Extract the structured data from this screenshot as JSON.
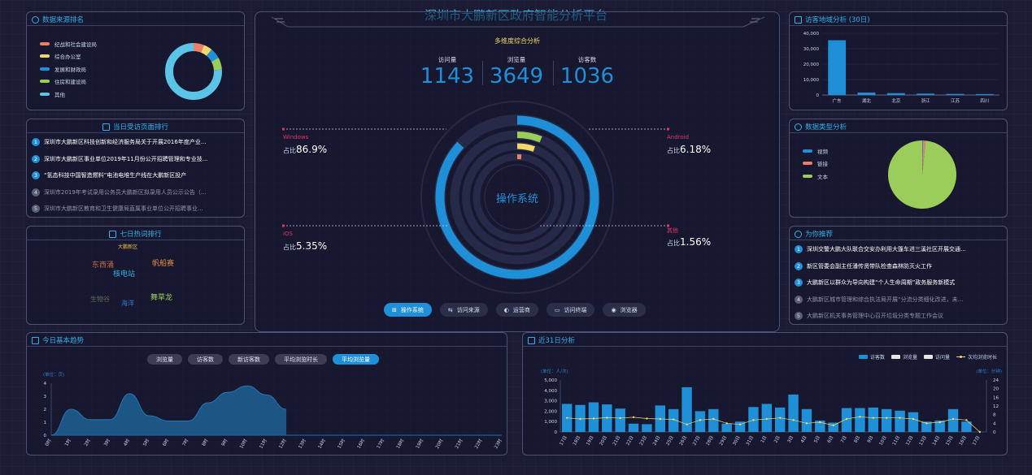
{
  "page_title": "深圳市大鹏新区政府智能分析平台",
  "sources": {
    "title": "数据来源排名",
    "items": [
      {
        "label": "纪战和社会建设局",
        "color": "#e8806a",
        "value": 6
      },
      {
        "label": "综合办公室",
        "color": "#f2d86b",
        "value": 5
      },
      {
        "label": "发展和财政局",
        "color": "#1f8fd8",
        "value": 6
      },
      {
        "label": "住房和建设局",
        "color": "#9acd5a",
        "value": 7
      },
      {
        "label": "其他",
        "color": "#5bc4e6",
        "value": 76
      }
    ]
  },
  "today_pages": {
    "title": "当日受访页面排行",
    "items": [
      {
        "num": "1",
        "text": "深圳市大鹏新区科技创新和经济服务局关于开展2016年度产业..."
      },
      {
        "num": "2",
        "text": "深圳市大鹏新区事业单位2019年11月份公开招聘管理和专业技..."
      },
      {
        "num": "3",
        "text": "“氢态科技中国智造燃料”电池电堆生产线在大鹏新区投产"
      },
      {
        "num": "4",
        "text": "深圳市2019年考试录用公务员大鹏新区拟录用人员公示公告（..."
      },
      {
        "num": "5",
        "text": "深圳市大鹏新区教育和卫生健康局直属事业单位公开招聘事业..."
      }
    ]
  },
  "hot_words": {
    "title": "七日热词排行",
    "words": [
      {
        "text": "大鹏新区",
        "color": "#e8c24a"
      },
      {
        "text": "东西涌",
        "color": "#c46a4a"
      },
      {
        "text": "帆船赛",
        "color": "#e88a4a"
      },
      {
        "text": "核电站",
        "color": "#2fb0e8"
      },
      {
        "text": "生物谷",
        "color": "#5a6c5a"
      },
      {
        "text": "海洋",
        "color": "#2f7fc8"
      },
      {
        "text": "舞草龙",
        "color": "#9acd5a"
      }
    ]
  },
  "center": {
    "subtitle": "多维度综合分析",
    "stats": [
      {
        "label": "访问量",
        "value": "1143"
      },
      {
        "label": "浏览量",
        "value": "3649"
      },
      {
        "label": "访客数",
        "value": "1036"
      }
    ],
    "ring_label": "操作系统",
    "os_items": [
      {
        "name": "Windows",
        "prefix": "占比",
        "pct": "86.9%",
        "value": 86.9,
        "color": "#1f8fd8"
      },
      {
        "name": "Android",
        "prefix": "占比",
        "pct": "6.18%",
        "value": 6.18,
        "color": "#9acd5a"
      },
      {
        "name": "iOS",
        "prefix": "占比",
        "pct": "5.35%",
        "value": 5.35,
        "color": "#f2d86b"
      },
      {
        "name": "其他",
        "prefix": "占比",
        "pct": "1.56%",
        "value": 1.56,
        "color": "#e8806a"
      }
    ],
    "tabs": [
      {
        "label": "操作系统",
        "icon": "windows-icon",
        "active": true
      },
      {
        "label": "访问来源",
        "icon": "source-icon",
        "active": false
      },
      {
        "label": "运营商",
        "icon": "operator-icon",
        "active": false
      },
      {
        "label": "访问终端",
        "icon": "monitor-icon",
        "active": false
      },
      {
        "label": "浏览器",
        "icon": "browser-icon",
        "active": false
      }
    ]
  },
  "region": {
    "title": "访客地域分析 (30日)",
    "chart_data": {
      "type": "bar",
      "categories": [
        "广东",
        "湖北",
        "北京",
        "浙江",
        "江苏",
        "四川"
      ],
      "values": [
        35500,
        1600,
        1200,
        900,
        700,
        600
      ],
      "yticks": [
        "40,000",
        "30,000",
        "20,000",
        "10,000",
        "0"
      ],
      "ylim": [
        0,
        40000
      ]
    }
  },
  "datatype": {
    "title": "数据类型分析",
    "chart_data": {
      "type": "pie",
      "items": [
        {
          "label": "视频",
          "color": "#1f8fd8",
          "value": 0.4
        },
        {
          "label": "链接",
          "color": "#e8806a",
          "value": 1.2
        },
        {
          "label": "文本",
          "color": "#9acd5a",
          "value": 98.4
        }
      ]
    }
  },
  "recommend": {
    "title": "为你推荐",
    "items": [
      {
        "num": "1",
        "text": "深圳交警大鹏大队联合交安办利用大篷车进三溪社区开展交通..."
      },
      {
        "num": "2",
        "text": "新区管委会副主任潘传贤带队检查森林防灭火工作"
      },
      {
        "num": "3",
        "text": "大鹏新区以群众为导向构建“个人生命周期”政务服务新模式"
      },
      {
        "num": "4",
        "text": "大鹏新区城市管理和综合执法局开展“分流分类细化改进，未..."
      },
      {
        "num": "5",
        "text": "大鹏新区机关事务管理中心召开垃圾分类专题工作会议"
      }
    ]
  },
  "trend": {
    "title": "今日基本趋势",
    "buttons": [
      {
        "label": "浏览量",
        "active": false
      },
      {
        "label": "访客数",
        "active": false
      },
      {
        "label": "新访客数",
        "active": false
      },
      {
        "label": "平均浏览时长",
        "active": false
      },
      {
        "label": "平均浏览量",
        "active": true
      }
    ],
    "unit_label": "(单位：页)",
    "chart_data": {
      "type": "area",
      "x": [
        "0时",
        "1时",
        "2时",
        "3时",
        "4时",
        "5时",
        "6时",
        "7时",
        "8时",
        "9时",
        "10时",
        "11时",
        "12时",
        "13时",
        "14时",
        "15时",
        "16时",
        "17时",
        "18时",
        "19时",
        "20时",
        "21时",
        "22时",
        "23时"
      ],
      "values": [
        0,
        2,
        1.2,
        1.2,
        3.2,
        1.5,
        1.1,
        1.1,
        2.5,
        3.3,
        3.8,
        3.1,
        2.0,
        null,
        null,
        null,
        null,
        null,
        null,
        null,
        null,
        null,
        null,
        null
      ],
      "yticks": [
        "4",
        "3",
        "2",
        "1",
        "0"
      ],
      "ylim": [
        0,
        4
      ]
    }
  },
  "days31": {
    "title": "近31日分析",
    "legend": [
      {
        "label": "访客数",
        "color": "#1f8fd8"
      },
      {
        "label": "浏览量",
        "color": "#e6e6e6"
      },
      {
        "label": "访问量",
        "color": "#e6e6e6"
      },
      {
        "label": "次均浏览时长",
        "color": "#f2d86b"
      }
    ],
    "left_unit": "(单位：人/次)",
    "right_unit": "(单位：分钟)",
    "chart_data": {
      "type": "bar",
      "categories": [
        "17日",
        "18日",
        "19日",
        "20日",
        "21日",
        "22日",
        "23日",
        "24日",
        "25日",
        "26日",
        "27日",
        "28日",
        "29日",
        "30日",
        "31日",
        "1日",
        "2日",
        "3日",
        "4日",
        "5日",
        "6日",
        "7日",
        "8日",
        "9日",
        "10日",
        "11日",
        "12日",
        "13日",
        "14日",
        "15日",
        "16日",
        "17日"
      ],
      "series": [
        {
          "name": "访客数",
          "values": [
            2700,
            2600,
            2850,
            2650,
            2250,
            800,
            750,
            2550,
            2200,
            4300,
            2000,
            2200,
            800,
            1000,
            2400,
            2700,
            2350,
            3600,
            2200,
            1100,
            900,
            2300,
            2300,
            2350,
            2200,
            2050,
            1900,
            1000,
            1100,
            2200,
            1000,
            0
          ]
        },
        {
          "name": "次均浏览时长",
          "values": [
            6.5,
            6.0,
            6.2,
            6.6,
            6.4,
            6.8,
            6.2,
            6.0,
            5.8,
            3.5,
            5.5,
            6.0,
            4.0,
            3.5,
            5.5,
            6.0,
            6.5,
            5.5,
            4.0,
            4.5,
            3.0,
            6.0,
            7.0,
            6.5,
            6.5,
            6.5,
            6.0,
            4.0,
            4.5,
            6.0,
            5.5,
            0
          ]
        }
      ],
      "left_ticks": [
        "5,000",
        "4,000",
        "3,000",
        "2,000",
        "1,000",
        "0"
      ],
      "right_ticks": [
        "24",
        "20",
        "16",
        "12",
        "8",
        "4",
        "0"
      ],
      "left_lim": [
        0,
        5000
      ],
      "right_lim": [
        0,
        24
      ]
    }
  }
}
